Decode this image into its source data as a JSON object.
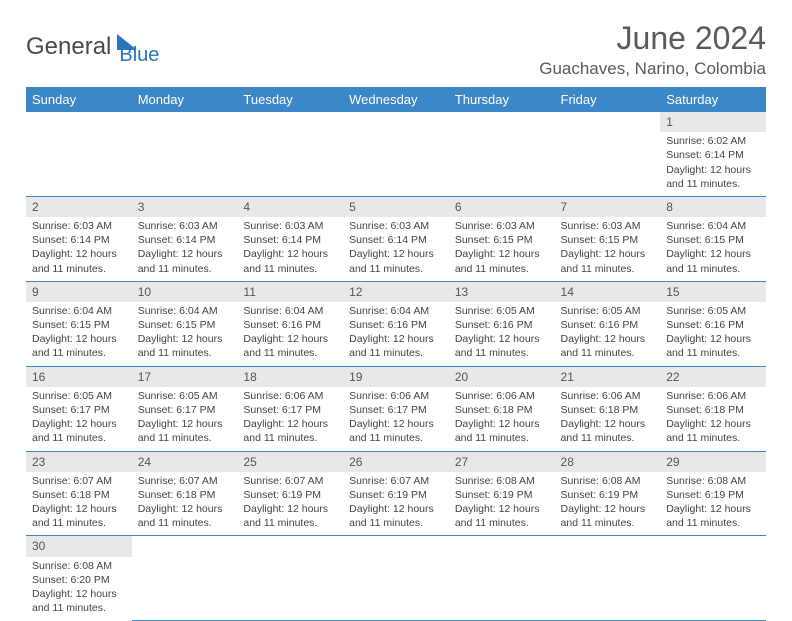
{
  "logo": {
    "part1": "General",
    "part2": "Blue"
  },
  "title": "June 2024",
  "location": "Guachaves, Narino, Colombia",
  "colors": {
    "header_bg": "#3b87c8",
    "header_text": "#ffffff",
    "daynum_bg": "#e8e8e8",
    "row_divider": "#3b87c8",
    "text": "#444444",
    "title_text": "#5a5a5a",
    "logo_dark": "#4a4a4a",
    "logo_blue": "#2a74b8"
  },
  "days_of_week": [
    "Sunday",
    "Monday",
    "Tuesday",
    "Wednesday",
    "Thursday",
    "Friday",
    "Saturday"
  ],
  "weeks": [
    [
      null,
      null,
      null,
      null,
      null,
      null,
      {
        "n": "1",
        "sunrise": "6:02 AM",
        "sunset": "6:14 PM",
        "daylight": "12 hours and 11 minutes."
      }
    ],
    [
      {
        "n": "2",
        "sunrise": "6:03 AM",
        "sunset": "6:14 PM",
        "daylight": "12 hours and 11 minutes."
      },
      {
        "n": "3",
        "sunrise": "6:03 AM",
        "sunset": "6:14 PM",
        "daylight": "12 hours and 11 minutes."
      },
      {
        "n": "4",
        "sunrise": "6:03 AM",
        "sunset": "6:14 PM",
        "daylight": "12 hours and 11 minutes."
      },
      {
        "n": "5",
        "sunrise": "6:03 AM",
        "sunset": "6:14 PM",
        "daylight": "12 hours and 11 minutes."
      },
      {
        "n": "6",
        "sunrise": "6:03 AM",
        "sunset": "6:15 PM",
        "daylight": "12 hours and 11 minutes."
      },
      {
        "n": "7",
        "sunrise": "6:03 AM",
        "sunset": "6:15 PM",
        "daylight": "12 hours and 11 minutes."
      },
      {
        "n": "8",
        "sunrise": "6:04 AM",
        "sunset": "6:15 PM",
        "daylight": "12 hours and 11 minutes."
      }
    ],
    [
      {
        "n": "9",
        "sunrise": "6:04 AM",
        "sunset": "6:15 PM",
        "daylight": "12 hours and 11 minutes."
      },
      {
        "n": "10",
        "sunrise": "6:04 AM",
        "sunset": "6:15 PM",
        "daylight": "12 hours and 11 minutes."
      },
      {
        "n": "11",
        "sunrise": "6:04 AM",
        "sunset": "6:16 PM",
        "daylight": "12 hours and 11 minutes."
      },
      {
        "n": "12",
        "sunrise": "6:04 AM",
        "sunset": "6:16 PM",
        "daylight": "12 hours and 11 minutes."
      },
      {
        "n": "13",
        "sunrise": "6:05 AM",
        "sunset": "6:16 PM",
        "daylight": "12 hours and 11 minutes."
      },
      {
        "n": "14",
        "sunrise": "6:05 AM",
        "sunset": "6:16 PM",
        "daylight": "12 hours and 11 minutes."
      },
      {
        "n": "15",
        "sunrise": "6:05 AM",
        "sunset": "6:16 PM",
        "daylight": "12 hours and 11 minutes."
      }
    ],
    [
      {
        "n": "16",
        "sunrise": "6:05 AM",
        "sunset": "6:17 PM",
        "daylight": "12 hours and 11 minutes."
      },
      {
        "n": "17",
        "sunrise": "6:05 AM",
        "sunset": "6:17 PM",
        "daylight": "12 hours and 11 minutes."
      },
      {
        "n": "18",
        "sunrise": "6:06 AM",
        "sunset": "6:17 PM",
        "daylight": "12 hours and 11 minutes."
      },
      {
        "n": "19",
        "sunrise": "6:06 AM",
        "sunset": "6:17 PM",
        "daylight": "12 hours and 11 minutes."
      },
      {
        "n": "20",
        "sunrise": "6:06 AM",
        "sunset": "6:18 PM",
        "daylight": "12 hours and 11 minutes."
      },
      {
        "n": "21",
        "sunrise": "6:06 AM",
        "sunset": "6:18 PM",
        "daylight": "12 hours and 11 minutes."
      },
      {
        "n": "22",
        "sunrise": "6:06 AM",
        "sunset": "6:18 PM",
        "daylight": "12 hours and 11 minutes."
      }
    ],
    [
      {
        "n": "23",
        "sunrise": "6:07 AM",
        "sunset": "6:18 PM",
        "daylight": "12 hours and 11 minutes."
      },
      {
        "n": "24",
        "sunrise": "6:07 AM",
        "sunset": "6:18 PM",
        "daylight": "12 hours and 11 minutes."
      },
      {
        "n": "25",
        "sunrise": "6:07 AM",
        "sunset": "6:19 PM",
        "daylight": "12 hours and 11 minutes."
      },
      {
        "n": "26",
        "sunrise": "6:07 AM",
        "sunset": "6:19 PM",
        "daylight": "12 hours and 11 minutes."
      },
      {
        "n": "27",
        "sunrise": "6:08 AM",
        "sunset": "6:19 PM",
        "daylight": "12 hours and 11 minutes."
      },
      {
        "n": "28",
        "sunrise": "6:08 AM",
        "sunset": "6:19 PM",
        "daylight": "12 hours and 11 minutes."
      },
      {
        "n": "29",
        "sunrise": "6:08 AM",
        "sunset": "6:19 PM",
        "daylight": "12 hours and 11 minutes."
      }
    ],
    [
      {
        "n": "30",
        "sunrise": "6:08 AM",
        "sunset": "6:20 PM",
        "daylight": "12 hours and 11 minutes."
      },
      null,
      null,
      null,
      null,
      null,
      null
    ]
  ],
  "labels": {
    "sunrise": "Sunrise: ",
    "sunset": "Sunset: ",
    "daylight": "Daylight: "
  }
}
